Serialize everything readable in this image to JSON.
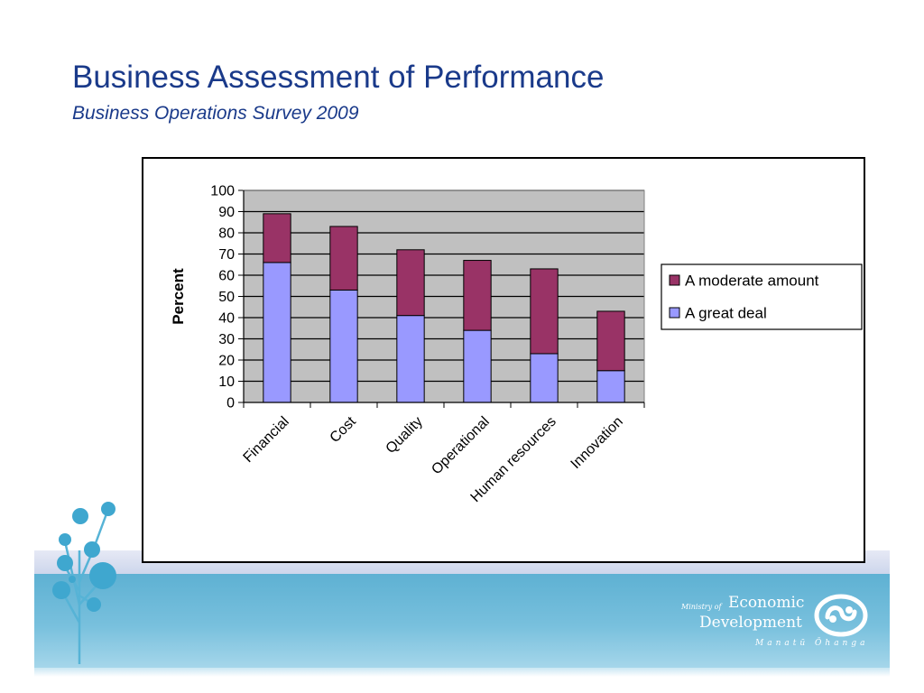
{
  "slide": {
    "title": "Business Assessment of Performance",
    "subtitle": "Business Operations Survey 2009"
  },
  "logo": {
    "ministry_of": "Ministry of",
    "economic": "Economic",
    "development": "Development",
    "maori_name": "Manatū Ōhanga",
    "icon": "koru-icon"
  },
  "decoration": {
    "tree_icon": "tree-icon"
  },
  "colors": {
    "title_text": "#1a3a8a",
    "great_deal": "#9999ff",
    "moderate_amount": "#993366",
    "plot_background": "#c0c0c0",
    "band_blue": "#5eb1d3"
  },
  "chart_data": {
    "type": "bar",
    "stacked": true,
    "categories": [
      "Financial",
      "Cost",
      "Quality",
      "Operational",
      "Human resources",
      "Innovation"
    ],
    "series": [
      {
        "name": "A great deal",
        "color": "#9999ff",
        "values": [
          66,
          53,
          41,
          34,
          23,
          15
        ]
      },
      {
        "name": "A moderate amount",
        "color": "#993366",
        "values": [
          23,
          30,
          31,
          33,
          40,
          28
        ]
      }
    ],
    "legend_order": [
      "A moderate amount",
      "A great deal"
    ],
    "legend_position": "right",
    "ylabel": "Percent",
    "xlabel": "",
    "ylim": [
      0,
      100
    ],
    "yticks": [
      0,
      10,
      20,
      30,
      40,
      50,
      60,
      70,
      80,
      90,
      100
    ],
    "grid": true
  }
}
